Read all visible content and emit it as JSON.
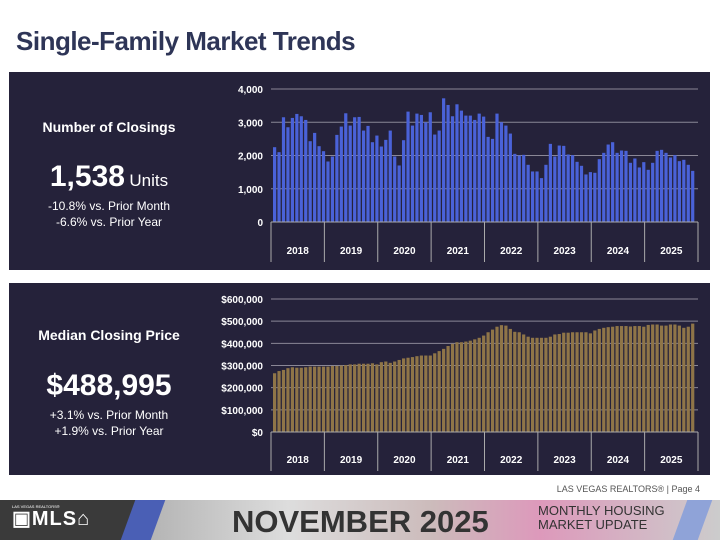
{
  "page_title": "Single-Family Market Trends",
  "closings": {
    "title": "Number of Closings",
    "value": "1,538",
    "unit": "Units",
    "change_month": "-10.8% vs. Prior Month",
    "change_year": "-6.6% vs. Prior Year"
  },
  "price": {
    "title": "Median Closing Price",
    "value": "$488,995",
    "change_month": "+3.1% vs. Prior Month",
    "change_year": "+1.9% vs. Prior Year"
  },
  "footer": {
    "page": "LAS VEGAS REALTORS® | Page 4",
    "logo": "LAS VEGAS REALTORS® MLS",
    "month": "NOVEMBER 2025",
    "subtitle1": "MONTHLY HOUSING",
    "subtitle2": "MARKET UPDATE"
  },
  "chart_data": [
    {
      "type": "bar",
      "name": "closings",
      "color": "#4a62d8",
      "ylim": [
        0,
        4000
      ],
      "yticks": [
        "0",
        "1,000",
        "2,000",
        "3,000",
        "4,000"
      ],
      "ytick_values": [
        0,
        1000,
        2000,
        3000,
        4000
      ],
      "grid": true,
      "years": [
        "2018",
        "2019",
        "2020",
        "2021",
        "2022",
        "2023",
        "2024",
        "2025"
      ],
      "values": [
        2250,
        2100,
        3150,
        2850,
        3130,
        3250,
        3180,
        3070,
        2430,
        2680,
        2280,
        2130,
        1820,
        1970,
        2620,
        2870,
        3270,
        2900,
        3150,
        3160,
        2750,
        2890,
        2400,
        2600,
        2270,
        2470,
        2750,
        1970,
        1700,
        2460,
        3320,
        2900,
        3260,
        3220,
        3000,
        3300,
        2630,
        2750,
        3720,
        3520,
        3180,
        3540,
        3350,
        3200,
        3200,
        3070,
        3260,
        3170,
        2560,
        2500,
        3260,
        3000,
        2900,
        2660,
        2050,
        2000,
        2020,
        1720,
        1520,
        1520,
        1320,
        1720,
        2350,
        1970,
        2300,
        2290,
        2030,
        2010,
        1810,
        1690,
        1430,
        1500,
        1480,
        1890,
        2080,
        2330,
        2400,
        2080,
        2150,
        2140,
        1780,
        1910,
        1640,
        1800,
        1570,
        1780,
        2140,
        2170,
        2080,
        1940,
        2010,
        1830,
        1870,
        1720,
        1538
      ]
    },
    {
      "type": "bar",
      "name": "median_price",
      "color": "#8f7548",
      "ylim": [
        0,
        600000
      ],
      "yticks": [
        "$0",
        "$100,000",
        "$200,000",
        "$300,000",
        "$400,000",
        "$500,000",
        "$600,000"
      ],
      "ytick_values": [
        0,
        100000,
        200000,
        300000,
        400000,
        500000,
        600000
      ],
      "grid": true,
      "years": [
        "2018",
        "2019",
        "2020",
        "2021",
        "2022",
        "2023",
        "2024",
        "2025"
      ],
      "values": [
        265000,
        275000,
        280000,
        288000,
        292000,
        290000,
        290000,
        292000,
        295000,
        295000,
        295000,
        295000,
        295000,
        298000,
        298000,
        300000,
        302000,
        305000,
        305000,
        308000,
        308000,
        308000,
        310000,
        305000,
        315000,
        318000,
        312000,
        318000,
        325000,
        332000,
        335000,
        338000,
        342000,
        345000,
        345000,
        345000,
        355000,
        365000,
        375000,
        388000,
        398000,
        405000,
        405000,
        408000,
        412000,
        418000,
        425000,
        435000,
        450000,
        462000,
        475000,
        482000,
        480000,
        465000,
        452000,
        450000,
        440000,
        430000,
        425000,
        425000,
        425000,
        425000,
        430000,
        440000,
        442000,
        448000,
        448000,
        450000,
        450000,
        450000,
        450000,
        445000,
        458000,
        465000,
        470000,
        473000,
        475000,
        478000,
        478000,
        478000,
        476000,
        478000,
        478000,
        475000,
        483000,
        485000,
        485000,
        480000,
        480000,
        485000,
        485000,
        480000,
        470000,
        475000,
        488995
      ]
    }
  ]
}
